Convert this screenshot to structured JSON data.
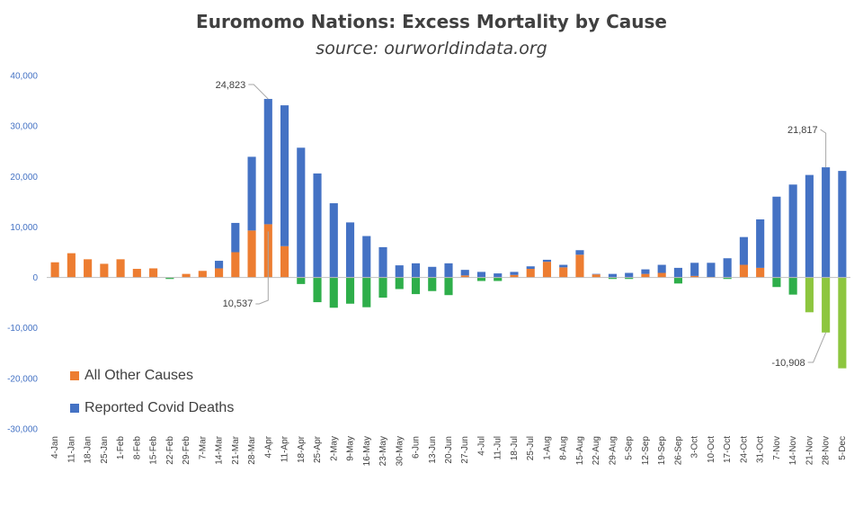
{
  "title": "Euromomo Nations: Excess Mortality by Cause",
  "subtitle": "source: ourworldindata.org",
  "colors": {
    "other_pos": "#ED7D31",
    "covid_pos": "#4472C4",
    "neg_dark": "#2EAE4A",
    "neg_light": "#8DC63F",
    "axis_text": "#4472C4",
    "tick_text": "#404040"
  },
  "legend": [
    {
      "label": "All Other Causes",
      "color": "#ED7D31"
    },
    {
      "label": "Reported Covid Deaths",
      "color": "#4472C4"
    }
  ],
  "chart_data": {
    "type": "bar",
    "stacked": true,
    "ylim": [
      -30000,
      40000
    ],
    "yticks": [
      "40,000",
      "30,000",
      "20,000",
      "10,000",
      "0",
      "-10,000",
      "-20,000",
      "-30,000"
    ],
    "grid": false,
    "categories": [
      "4-Jan",
      "11-Jan",
      "18-Jan",
      "25-Jan",
      "1-Feb",
      "8-Feb",
      "15-Feb",
      "22-Feb",
      "29-Feb",
      "7-Mar",
      "14-Mar",
      "21-Mar",
      "28-Mar",
      "4-Apr",
      "11-Apr",
      "18-Apr",
      "25-Apr",
      "2-May",
      "9-May",
      "16-May",
      "23-May",
      "30-May",
      "6-Jun",
      "13-Jun",
      "20-Jun",
      "27-Jun",
      "4-Jul",
      "11-Jul",
      "18-Jul",
      "25-Jul",
      "1-Aug",
      "8-Aug",
      "15-Aug",
      "22-Aug",
      "29-Aug",
      "5-Sep",
      "12-Sep",
      "19-Sep",
      "26-Sep",
      "3-Oct",
      "10-Oct",
      "17-Oct",
      "24-Oct",
      "31-Oct",
      "7-Nov",
      "14-Nov",
      "21-Nov",
      "28-Nov",
      "5-Dec"
    ],
    "series": [
      {
        "name": "All Other Causes",
        "values": [
          3000,
          4800,
          3600,
          2700,
          3600,
          1700,
          1800,
          -300,
          700,
          1300,
          1800,
          5000,
          9300,
          10537,
          6200,
          -1300,
          -4900,
          -6000,
          -5200,
          -5900,
          -4000,
          -2300,
          -3300,
          -2700,
          -3500,
          400,
          -700,
          -700,
          500,
          1700,
          3100,
          2000,
          4500,
          600,
          -300,
          -300,
          700,
          900,
          -1200,
          300,
          100,
          -300,
          2500,
          1900,
          -1900,
          -3400,
          -6900,
          -10908,
          -18000
        ]
      },
      {
        "name": "Reported Covid Deaths",
        "values": [
          0,
          0,
          0,
          0,
          0,
          0,
          0,
          0,
          0,
          0,
          1500,
          5800,
          14600,
          24823,
          27900,
          25700,
          20600,
          14700,
          10900,
          8200,
          6000,
          2400,
          2800,
          2100,
          2800,
          1100,
          1100,
          800,
          600,
          500,
          400,
          500,
          900,
          100,
          700,
          900,
          900,
          1600,
          1900,
          2600,
          2800,
          3800,
          5500,
          9600,
          16000,
          18400,
          20300,
          21817,
          21100
        ]
      }
    ],
    "annotations": [
      {
        "label": "24,823",
        "category": "4-Apr",
        "series": "Reported Covid Deaths"
      },
      {
        "label": "10,537",
        "category": "4-Apr",
        "series": "All Other Causes"
      },
      {
        "label": "21,817",
        "category": "28-Nov",
        "series": "Reported Covid Deaths"
      },
      {
        "label": "-10,908",
        "category": "28-Nov",
        "series": "All Other Causes"
      }
    ]
  }
}
